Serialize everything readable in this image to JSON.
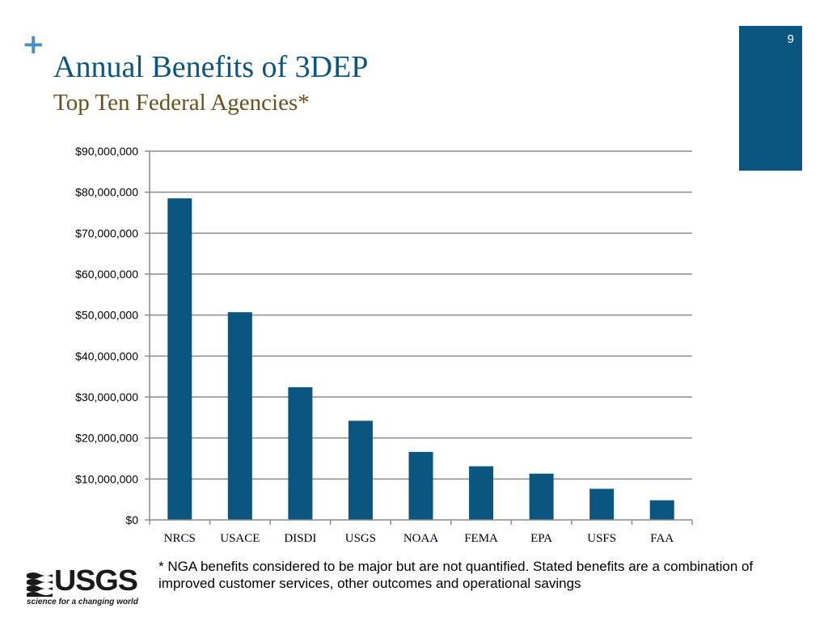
{
  "slide": {
    "title": "Annual Benefits of 3DEP",
    "subtitle": "Top Ten Federal Agencies*",
    "slide_number": "9",
    "plus_symbol": "+",
    "accent_color": "#0b5680",
    "plus_color": "#4a90c4",
    "subtitle_color": "#6b4f1c"
  },
  "chart_data": {
    "type": "bar",
    "categories": [
      "NRCS",
      "USACE",
      "DISDI",
      "USGS",
      "NOAA",
      "FEMA",
      "EPA",
      "USFS",
      "FAA"
    ],
    "values": [
      78500000,
      50700000,
      32400000,
      24200000,
      16600000,
      13100000,
      11300000,
      7600000,
      4800000
    ],
    "ylim": [
      0,
      90000000
    ],
    "ytick_values": [
      0,
      10000000,
      20000000,
      30000000,
      40000000,
      50000000,
      60000000,
      70000000,
      80000000,
      90000000
    ],
    "ytick_labels": [
      "$0",
      "$10,000,000",
      "$20,000,000",
      "$30,000,000",
      "$40,000,000",
      "$50,000,000",
      "$60,000,000",
      "$70,000,000",
      "$80,000,000",
      "$90,000,000"
    ],
    "grid": true,
    "legend": "none",
    "bar_color": "#0b5680",
    "title": "",
    "xlabel": "",
    "ylabel": ""
  },
  "footnote": "* NGA benefits considered to be major but are not quantified. Stated benefits are a combination of improved customer services, other outcomes and operational savings",
  "logo": {
    "name": "USGS",
    "tagline": "science for a changing world"
  }
}
